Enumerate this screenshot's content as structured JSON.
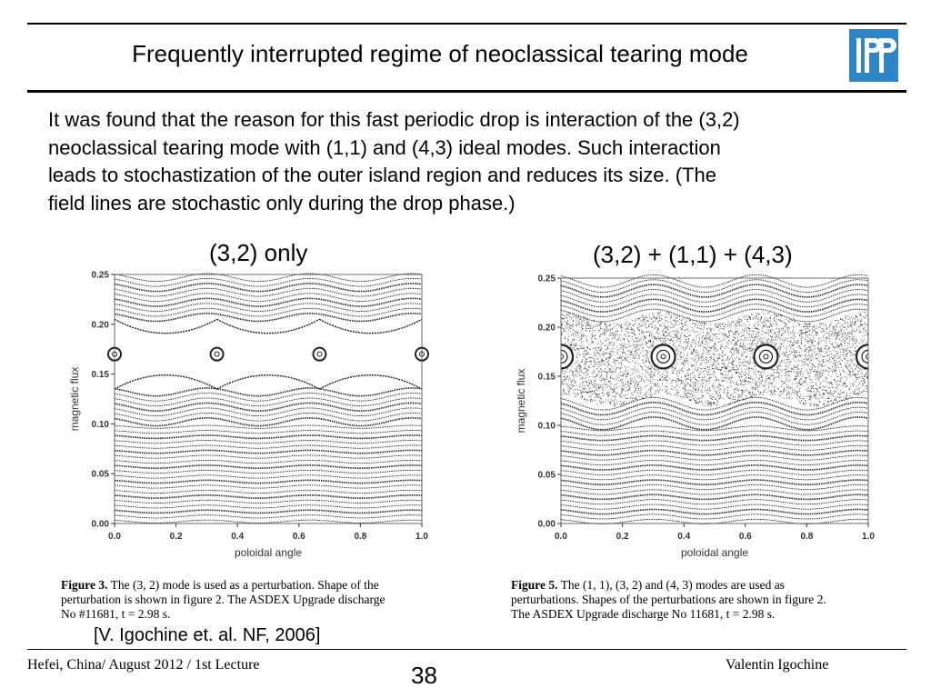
{
  "slide": {
    "title": "Frequently interrupted regime of neoclassical tearing mode",
    "logo_text": "IPP",
    "body_lines": [
      "It was found that the reason for this fast periodic drop is interaction of the (3,2)",
      "neoclassical tearing mode with (1,1) and (4,3) ideal modes. Such interaction",
      "leads to stochastization of the outer island region and reduces its size. (The",
      "field lines are stochastic only during the drop phase.)"
    ],
    "citation": "[V. Igochine et. al. NF, 2006]",
    "footer": {
      "left": "Hefei, China/ August 2012 / 1st Lecture",
      "page": "38",
      "right": "Valentin Igochine"
    },
    "colors": {
      "logo": "#2f84c6",
      "figure_link": "#2a52be"
    }
  },
  "figures": [
    {
      "panel_label": "(3,2) only",
      "caption_bold": "Figure 3.",
      "caption_lines": [
        "The (3, 2) mode is used as a perturbation. Shape of the",
        "perturbation is shown in figure 2. The ASDEX Upgrade discharge",
        "No #11681, t = 2.98 s."
      ]
    },
    {
      "panel_label": "(3,2) + (1,1) + (4,3)",
      "caption_bold": "Figure 5.",
      "caption_lines": [
        "The (1, 1), (3, 2) and (4, 3) modes are used as",
        "perturbations. Shapes of the perturbations are shown in figure 2.",
        "The ASDEX Upgrade discharge No 11681, t = 2.98 s."
      ]
    }
  ],
  "chart_data": [
    {
      "type": "scatter",
      "title": "",
      "xlabel": "poloidal angle",
      "ylabel": "magnetic flux",
      "xlim": [
        0.0,
        1.0
      ],
      "ylim": [
        0.0,
        0.25
      ],
      "x_ticks": [
        "0.0",
        "0.2",
        "0.4",
        "0.6",
        "0.8",
        "1.0"
      ],
      "y_ticks": [
        "0.00",
        "0.05",
        "0.10",
        "0.15",
        "0.20",
        "0.25"
      ],
      "description_points": {
        "island_o_points_x": [
          0.0,
          0.333,
          0.667,
          1.0
        ],
        "island_o_point_y": 0.17,
        "island_half_width": 0.035,
        "stochastic": false
      }
    },
    {
      "type": "scatter",
      "title": "",
      "xlabel": "poloidal angle",
      "ylabel": "magnetic flux",
      "xlim": [
        0.0,
        1.0
      ],
      "ylim": [
        0.0,
        0.25
      ],
      "x_ticks": [
        "0.0",
        "0.2",
        "0.4",
        "0.6",
        "0.8",
        "1.0"
      ],
      "y_ticks": [
        "0.00",
        "0.05",
        "0.10",
        "0.15",
        "0.20",
        "0.25"
      ],
      "description_points": {
        "island_o_points_x": [
          0.0,
          0.333,
          0.667,
          1.0
        ],
        "island_o_point_y": 0.17,
        "stochastic_band": [
          0.125,
          0.21
        ],
        "stochastic": true
      }
    }
  ]
}
